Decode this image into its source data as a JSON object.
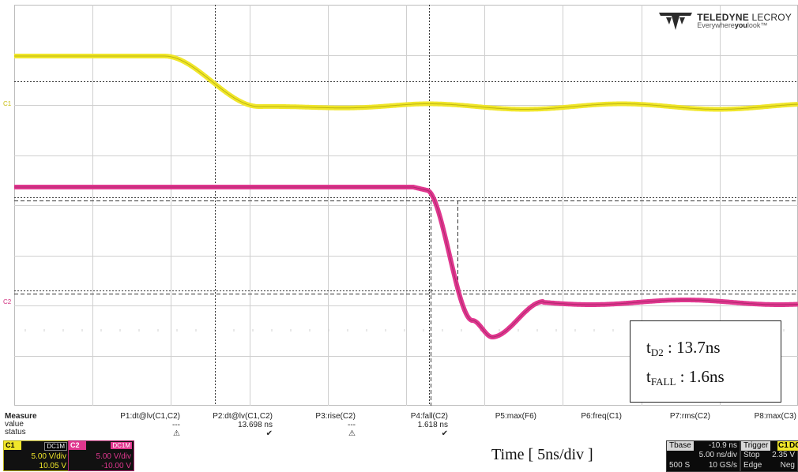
{
  "brand": {
    "name_bold": "TELEDYNE",
    "name_light": " LECROY",
    "tag_pre": "Everywhere",
    "tag_bold": "you",
    "tag_post": "look™"
  },
  "channels": [
    {
      "marker": "C1",
      "tag": "C1",
      "coupling": "DC1M",
      "vdiv": "5.00 V/div",
      "offset": "10.05 V",
      "color": "#f0e62a"
    },
    {
      "marker": "C2",
      "tag": "C2",
      "coupling": "DC1M",
      "vdiv": "5.00 V/div",
      "offset": "-10.00 V",
      "color": "#e0378f"
    }
  ],
  "annotation": {
    "td_main": "t",
    "td_sub": "D2",
    "td_value": " : 13.7ns",
    "tf_main": "t",
    "tf_sub": "FALL",
    "tf_value": " : 1.6ns"
  },
  "measure": {
    "row_labels": [
      "Measure",
      "value",
      "status"
    ],
    "columns": [
      {
        "name": "P1:dt@lv(C1,C2)",
        "value": "---",
        "status": "⚠"
      },
      {
        "name": "P2:dt@lv(C1,C2)",
        "value": "13.698 ns",
        "status": "✔"
      },
      {
        "name": "P3:rise(C2)",
        "value": "---",
        "status": "⚠"
      },
      {
        "name": "P4:fall(C2)",
        "value": "1.618 ns",
        "status": "✔"
      },
      {
        "name": "P5:max(F6)",
        "value": "",
        "status": ""
      },
      {
        "name": "P6:freq(C1)",
        "value": "",
        "status": ""
      },
      {
        "name": "P7:rms(C2)",
        "value": "",
        "status": ""
      },
      {
        "name": "P8:max(C3)",
        "value": "",
        "status": ""
      }
    ]
  },
  "time_label": "Time [ 5ns/div ]",
  "timebase": {
    "label": "Tbase",
    "delay": "-10.9 ns",
    "tdiv": "5.00 ns/div",
    "samples": "500 S",
    "rate": "10 GS/s"
  },
  "trigger": {
    "label": "Trigger",
    "source": "C1",
    "coupling": "DC",
    "mode": "Stop",
    "level": "2.35 V",
    "type": "Edge",
    "slope": "Neg"
  }
}
